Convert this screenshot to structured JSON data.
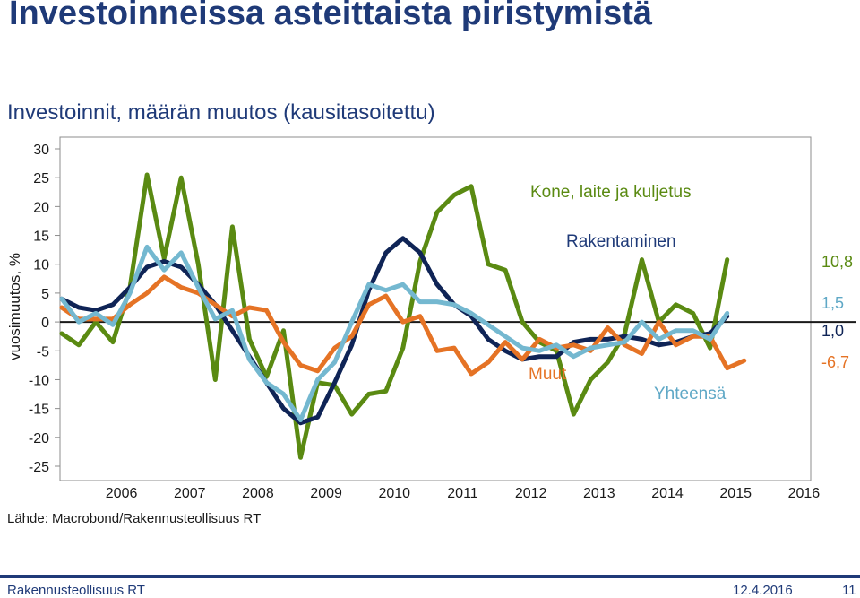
{
  "slide": {
    "title": "Investoinneissa asteittaista piristymistä",
    "source": "Lähde: Macrobond/Rakennusteollisuus RT",
    "footer_org": "Rakennusteollisuus RT",
    "footer_date": "12.4.2016",
    "footer_page": "11"
  },
  "chart_data": {
    "type": "line",
    "title": "Investoinnit, määrän muutos (kausitasoitettu)",
    "ylabel": "vuosimuutos, %",
    "xlabel": "",
    "ylim": [
      -25,
      30
    ],
    "yticks": [
      30,
      25,
      20,
      15,
      10,
      5,
      0,
      -5,
      -10,
      -15,
      -20,
      -25
    ],
    "xlim": [
      2005.6,
      2016.6
    ],
    "xticks": [
      "2006",
      "2007",
      "2008",
      "2009",
      "2010",
      "2011",
      "2012",
      "2013",
      "2014",
      "2015",
      "2016"
    ],
    "grid": false,
    "zero_line": true,
    "legend": "inline labels",
    "series": [
      {
        "name": "Kone, laite ja kuljetus",
        "color": "#5a8a12",
        "end_label": "10,8",
        "x": [
          2005.625,
          2005.875,
          2006.125,
          2006.375,
          2006.625,
          2006.875,
          2007.125,
          2007.375,
          2007.625,
          2007.875,
          2008.125,
          2008.375,
          2008.625,
          2008.875,
          2009.125,
          2009.375,
          2009.625,
          2009.875,
          2010.125,
          2010.375,
          2010.625,
          2010.875,
          2011.125,
          2011.375,
          2011.625,
          2011.875,
          2012.125,
          2012.375,
          2012.625,
          2012.875,
          2013.125,
          2013.375,
          2013.625,
          2013.875,
          2014.125,
          2014.375,
          2014.625,
          2014.875,
          2015.125,
          2015.375,
          2015.625
        ],
        "values": [
          -2,
          -4,
          0,
          -3.5,
          6,
          25.5,
          11,
          25,
          10,
          -10,
          16.5,
          -3,
          -9.5,
          -1.5,
          -23.5,
          -10.5,
          -11,
          -16,
          -12.5,
          -12,
          -4.5,
          10.5,
          19,
          22,
          23.5,
          10,
          9,
          0,
          -3.5,
          -5,
          -16,
          -10,
          -7,
          -2,
          10.8,
          0,
          3,
          1.5,
          -4.5,
          10.8,
          null
        ]
      },
      {
        "name": "Rakentaminen",
        "color": "#0f2456",
        "end_label": "1,0",
        "x": [
          2005.625,
          2005.875,
          2006.125,
          2006.375,
          2006.625,
          2006.875,
          2007.125,
          2007.375,
          2007.625,
          2007.875,
          2008.125,
          2008.375,
          2008.625,
          2008.875,
          2009.125,
          2009.375,
          2009.625,
          2009.875,
          2010.125,
          2010.375,
          2010.625,
          2010.875,
          2011.125,
          2011.375,
          2011.625,
          2011.875,
          2012.125,
          2012.375,
          2012.625,
          2012.875,
          2013.125,
          2013.375,
          2013.625,
          2013.875,
          2014.125,
          2014.375,
          2014.625,
          2014.875,
          2015.125,
          2015.375
        ],
        "values": [
          4,
          2.5,
          2,
          3,
          6,
          9.5,
          10.5,
          9.5,
          6.5,
          3,
          -1.5,
          -6,
          -10.5,
          -15,
          -17.5,
          -16.5,
          -10.5,
          -4,
          5.5,
          12,
          14.5,
          12,
          6.5,
          3,
          1,
          -3,
          -5,
          -6.5,
          -6,
          -6,
          -3.5,
          -3,
          -3,
          -2.5,
          -3,
          -4,
          -3.5,
          -2.5,
          -2,
          1.0
        ]
      },
      {
        "name": "Muut",
        "color": "#e57325",
        "end_label": "-6,7",
        "x": [
          2005.625,
          2005.875,
          2006.125,
          2006.375,
          2006.625,
          2006.875,
          2007.125,
          2007.375,
          2007.625,
          2007.875,
          2008.125,
          2008.375,
          2008.625,
          2008.875,
          2009.125,
          2009.375,
          2009.625,
          2009.875,
          2010.125,
          2010.375,
          2010.625,
          2010.875,
          2011.125,
          2011.375,
          2011.625,
          2011.875,
          2012.125,
          2012.375,
          2012.625,
          2012.875,
          2013.125,
          2013.375,
          2013.625,
          2013.875,
          2014.125,
          2014.375,
          2014.625,
          2014.875,
          2015.125,
          2015.375,
          2015.625
        ],
        "values": [
          2.5,
          0.5,
          0.5,
          0.5,
          3,
          5,
          7.8,
          6,
          5,
          3,
          1,
          2.5,
          2,
          -3.5,
          -7.5,
          -8.5,
          -4.5,
          -2.5,
          3,
          4.5,
          0,
          1,
          -5,
          -4.5,
          -9,
          -7,
          -3.5,
          -6.5,
          -3,
          -4.5,
          -4,
          -5,
          -1,
          -4,
          -5.5,
          0,
          -4,
          -2.5,
          -2.5,
          -8,
          -6.7
        ]
      },
      {
        "name": "Yhteensä",
        "color": "#74b8d0",
        "end_label": "1,5",
        "x": [
          2005.625,
          2005.875,
          2006.125,
          2006.375,
          2006.625,
          2006.875,
          2007.125,
          2007.375,
          2007.625,
          2007.875,
          2008.125,
          2008.375,
          2008.625,
          2008.875,
          2009.125,
          2009.375,
          2009.625,
          2009.875,
          2010.125,
          2010.375,
          2010.625,
          2010.875,
          2011.125,
          2011.375,
          2011.625,
          2011.875,
          2012.125,
          2012.375,
          2012.625,
          2012.875,
          2013.125,
          2013.375,
          2013.625,
          2013.875,
          2014.125,
          2014.375,
          2014.625,
          2014.875,
          2015.125,
          2015.375
        ],
        "values": [
          4,
          0,
          1.5,
          -0.5,
          5,
          13,
          9,
          12,
          6,
          0.5,
          2,
          -6.5,
          -10.5,
          -12.5,
          -17,
          -10,
          -7,
          0,
          6.5,
          5.5,
          6.5,
          3.5,
          3.5,
          3,
          1.5,
          -0.5,
          -2.5,
          -4.5,
          -5,
          -4,
          -6,
          -4.5,
          -4,
          -3.5,
          0,
          -3,
          -1.5,
          -1.5,
          -3,
          1.5
        ]
      }
    ]
  }
}
